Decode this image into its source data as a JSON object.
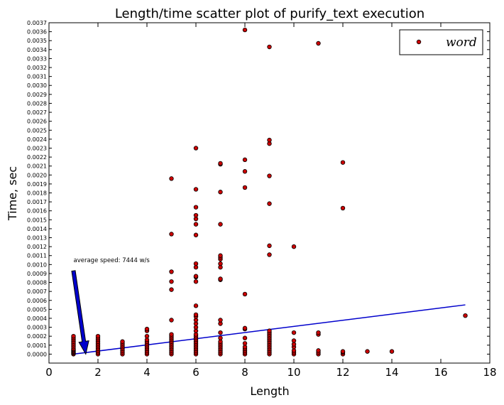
{
  "chart_data": {
    "type": "scatter",
    "title": "Length/time scatter plot of purify_text execution",
    "xlabel": "Length",
    "ylabel": "Time, sec",
    "xlim": [
      0,
      18
    ],
    "ylim": [
      -0.0001,
      0.0037
    ],
    "xticks": [
      "0",
      "2",
      "4",
      "6",
      "8",
      "10",
      "12",
      "14",
      "16",
      "18"
    ],
    "yticks": [
      "0.0000",
      "0.0001",
      "0.0002",
      "0.0003",
      "0.0004",
      "0.0005",
      "0.0006",
      "0.0007",
      "0.0008",
      "0.0009",
      "0.0010",
      "0.0011",
      "0.0012",
      "0.0013",
      "0.0014",
      "0.0015",
      "0.0016",
      "0.0017",
      "0.0018",
      "0.0019",
      "0.0020",
      "0.0021",
      "0.0022",
      "0.0023",
      "0.0024",
      "0.0025",
      "0.0026",
      "0.0027",
      "0.0028",
      "0.0029",
      "0.0030",
      "0.0031",
      "0.0032",
      "0.0033",
      "0.0034",
      "0.0035",
      "0.0036",
      "0.0037"
    ],
    "grid": false,
    "legend": {
      "placement": "top-right",
      "entries": [
        "word"
      ]
    },
    "colors": {
      "points": "#cc0000",
      "point_edge": "#000000",
      "fit_line": "#0000cc",
      "arrow": "#0000cc"
    },
    "series": [
      {
        "name": "word",
        "points": [
          [
            1,
            0.0
          ],
          [
            1,
            1e-05
          ],
          [
            1,
            2e-05
          ],
          [
            1,
            3e-05
          ],
          [
            1,
            4e-05
          ],
          [
            1,
            5e-05
          ],
          [
            1,
            6e-05
          ],
          [
            1,
            8e-05
          ],
          [
            1,
            0.0001
          ],
          [
            1,
            0.00012
          ],
          [
            1,
            0.00014
          ],
          [
            1,
            0.00016
          ],
          [
            1,
            0.00018
          ],
          [
            1,
            0.0002
          ],
          [
            2,
            0.0
          ],
          [
            2,
            2e-05
          ],
          [
            2,
            4e-05
          ],
          [
            2,
            6e-05
          ],
          [
            2,
            8e-05
          ],
          [
            2,
            0.0001
          ],
          [
            2,
            0.00012
          ],
          [
            2,
            0.00014
          ],
          [
            2,
            0.00016
          ],
          [
            2,
            0.00018
          ],
          [
            2,
            0.0002
          ],
          [
            3,
            0.0
          ],
          [
            3,
            2e-05
          ],
          [
            3,
            4e-05
          ],
          [
            3,
            6e-05
          ],
          [
            3,
            8e-05
          ],
          [
            3,
            0.0001
          ],
          [
            3,
            0.00012
          ],
          [
            3,
            0.00014
          ],
          [
            4,
            0.0
          ],
          [
            4,
            2e-05
          ],
          [
            4,
            4e-05
          ],
          [
            4,
            6e-05
          ],
          [
            4,
            8e-05
          ],
          [
            4,
            0.0001
          ],
          [
            4,
            0.00012
          ],
          [
            4,
            0.00014
          ],
          [
            4,
            0.00016
          ],
          [
            4,
            0.0002
          ],
          [
            4,
            0.00026
          ],
          [
            4,
            0.00028
          ],
          [
            5,
            0.0
          ],
          [
            5,
            2e-05
          ],
          [
            5,
            4e-05
          ],
          [
            5,
            6e-05
          ],
          [
            5,
            8e-05
          ],
          [
            5,
            0.0001
          ],
          [
            5,
            0.00012
          ],
          [
            5,
            0.00014
          ],
          [
            5,
            0.00016
          ],
          [
            5,
            0.00018
          ],
          [
            5,
            0.0002
          ],
          [
            5,
            0.00022
          ],
          [
            5,
            0.00038
          ],
          [
            5,
            0.00072
          ],
          [
            5,
            0.00081
          ],
          [
            5,
            0.00092
          ],
          [
            5,
            0.00134
          ],
          [
            5,
            0.00196
          ],
          [
            6,
            0.0
          ],
          [
            6,
            2e-05
          ],
          [
            6,
            4e-05
          ],
          [
            6,
            6e-05
          ],
          [
            6,
            8e-05
          ],
          [
            6,
            0.0001
          ],
          [
            6,
            0.00012
          ],
          [
            6,
            0.00014
          ],
          [
            6,
            0.00016
          ],
          [
            6,
            0.00018
          ],
          [
            6,
            0.0002
          ],
          [
            6,
            0.00022
          ],
          [
            6,
            0.00026
          ],
          [
            6,
            0.0003
          ],
          [
            6,
            0.00034
          ],
          [
            6,
            0.00038
          ],
          [
            6,
            0.00042
          ],
          [
            6,
            0.00044
          ],
          [
            6,
            0.00054
          ],
          [
            6,
            0.00081
          ],
          [
            6,
            0.00086
          ],
          [
            6,
            0.00087
          ],
          [
            6,
            0.00097
          ],
          [
            6,
            0.00101
          ],
          [
            6,
            0.00133
          ],
          [
            6,
            0.00145
          ],
          [
            6,
            0.00151
          ],
          [
            6,
            0.00155
          ],
          [
            6,
            0.00164
          ],
          [
            6,
            0.00184
          ],
          [
            6,
            0.0023
          ],
          [
            7,
            0.0
          ],
          [
            7,
            2e-05
          ],
          [
            7,
            4e-05
          ],
          [
            7,
            6e-05
          ],
          [
            7,
            8e-05
          ],
          [
            7,
            0.0001
          ],
          [
            7,
            0.00012
          ],
          [
            7,
            0.00014
          ],
          [
            7,
            0.00018
          ],
          [
            7,
            0.00024
          ],
          [
            7,
            0.00034
          ],
          [
            7,
            0.00038
          ],
          [
            7,
            0.00083
          ],
          [
            7,
            0.00084
          ],
          [
            7,
            0.00097
          ],
          [
            7,
            0.00101
          ],
          [
            7,
            0.00106
          ],
          [
            7,
            0.00108
          ],
          [
            7,
            0.0011
          ],
          [
            7,
            0.00145
          ],
          [
            7,
            0.00181
          ],
          [
            7,
            0.00212
          ],
          [
            7,
            0.00213
          ],
          [
            8,
            0.0
          ],
          [
            8,
            2e-05
          ],
          [
            8,
            4e-05
          ],
          [
            8,
            6e-05
          ],
          [
            8,
            8e-05
          ],
          [
            8,
            0.00012
          ],
          [
            8,
            0.00018
          ],
          [
            8,
            0.00028
          ],
          [
            8,
            0.00029
          ],
          [
            8,
            0.00067
          ],
          [
            8,
            0.00186
          ],
          [
            8,
            0.00204
          ],
          [
            8,
            0.00217
          ],
          [
            8,
            0.00362
          ],
          [
            9,
            0.0
          ],
          [
            9,
            2e-05
          ],
          [
            9,
            4e-05
          ],
          [
            9,
            6e-05
          ],
          [
            9,
            8e-05
          ],
          [
            9,
            0.0001
          ],
          [
            9,
            0.00012
          ],
          [
            9,
            0.00014
          ],
          [
            9,
            0.00016
          ],
          [
            9,
            0.00018
          ],
          [
            9,
            0.0002
          ],
          [
            9,
            0.00022
          ],
          [
            9,
            0.00024
          ],
          [
            9,
            0.00026
          ],
          [
            9,
            0.00111
          ],
          [
            9,
            0.00121
          ],
          [
            9,
            0.00168
          ],
          [
            9,
            0.00199
          ],
          [
            9,
            0.00235
          ],
          [
            9,
            0.00239
          ],
          [
            9,
            0.00343
          ],
          [
            10,
            0.0
          ],
          [
            10,
            2e-05
          ],
          [
            10,
            4e-05
          ],
          [
            10,
            8e-05
          ],
          [
            10,
            0.00011
          ],
          [
            10,
            0.00015
          ],
          [
            10,
            0.00024
          ],
          [
            10,
            0.0012
          ],
          [
            11,
            0.0
          ],
          [
            11,
            2e-05
          ],
          [
            11,
            4e-05
          ],
          [
            11,
            0.00022
          ],
          [
            11,
            0.00024
          ],
          [
            11,
            0.00347
          ],
          [
            12,
            0.0
          ],
          [
            12,
            2e-05
          ],
          [
            12,
            3e-05
          ],
          [
            12,
            0.00163
          ],
          [
            12,
            0.00214
          ],
          [
            13,
            3e-05
          ],
          [
            14,
            3e-05
          ],
          [
            17,
            0.00043
          ]
        ]
      }
    ],
    "fit_line": {
      "x": [
        1,
        17
      ],
      "y": [
        0.0,
        0.00055
      ]
    },
    "annotation": {
      "text": "average speed: 7444 w/s",
      "arrow_from": [
        1.0,
        0.00093
      ],
      "arrow_to": [
        1.5,
        0.0
      ]
    }
  }
}
